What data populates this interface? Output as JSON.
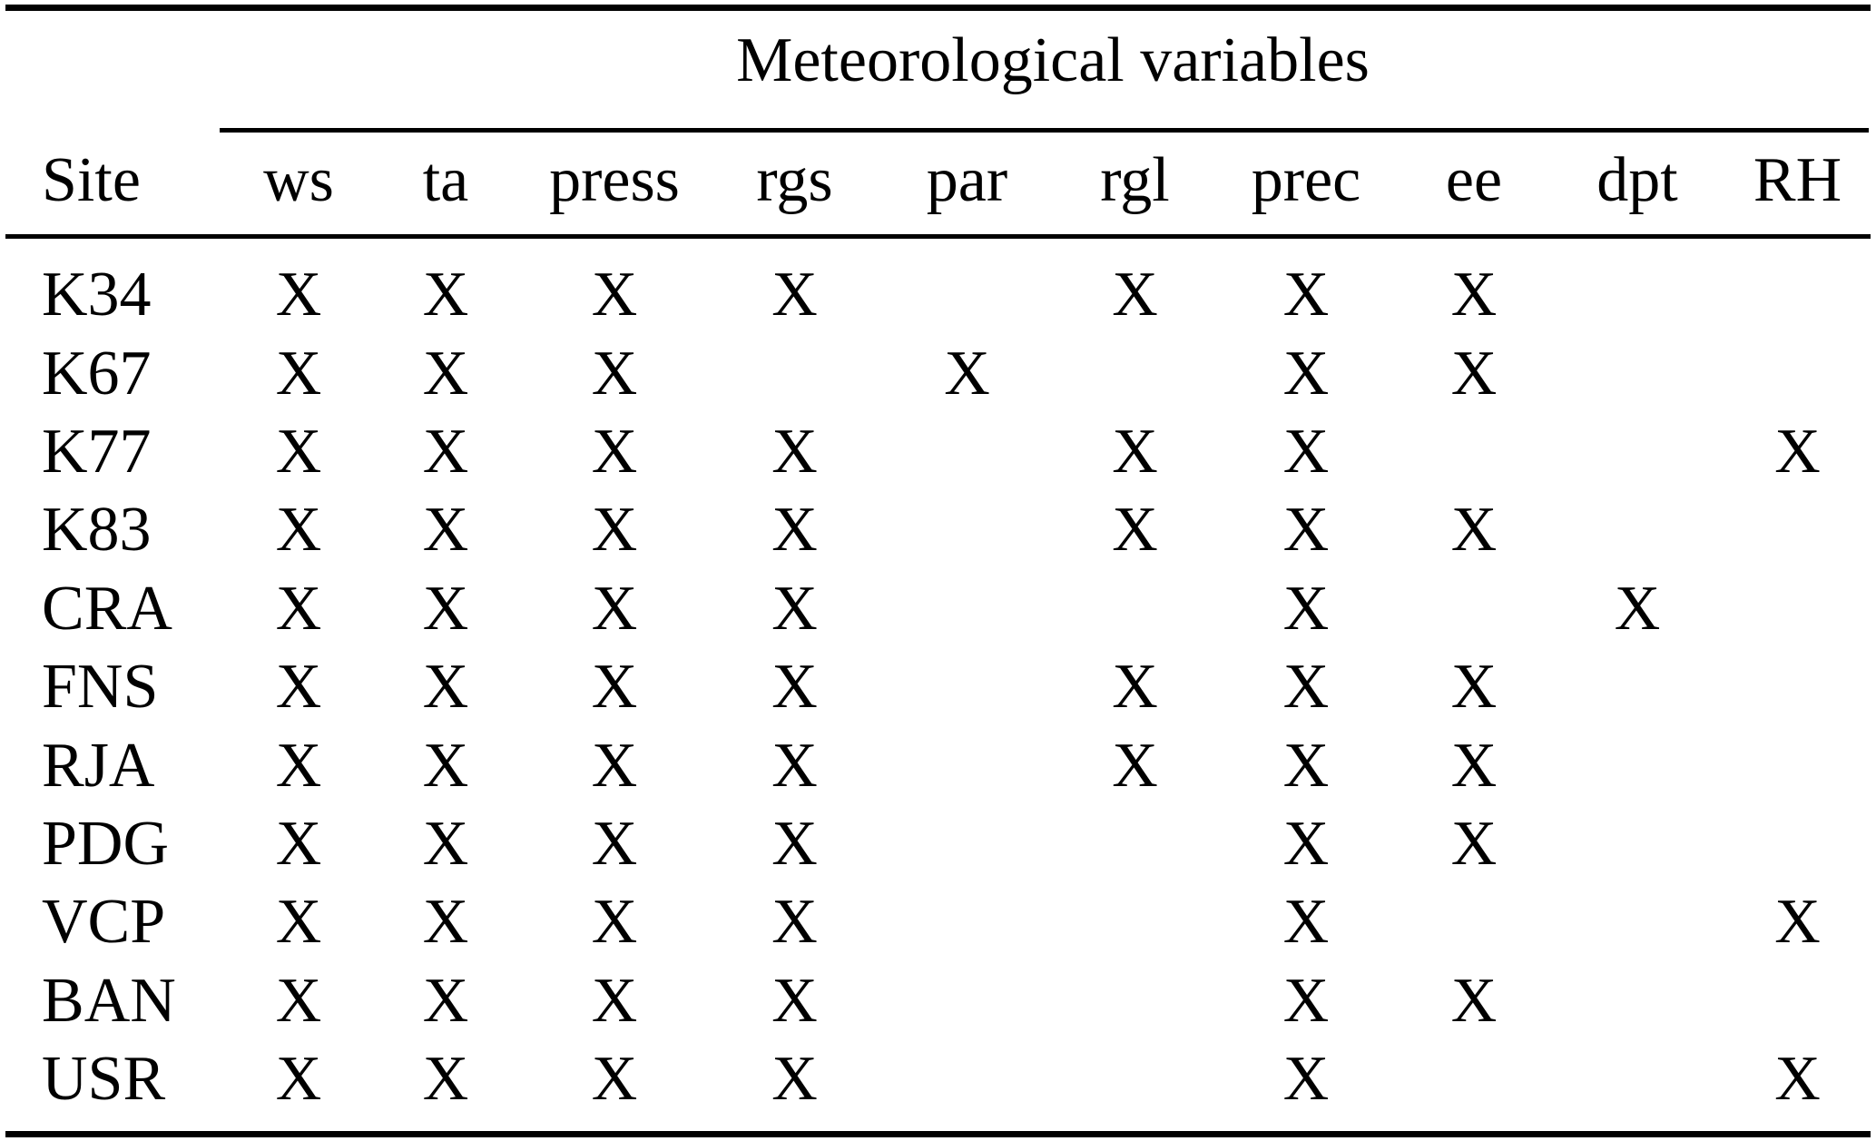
{
  "table": {
    "group_header": "Meteorological variables",
    "site_column_header": "Site",
    "variable_columns": [
      "ws",
      "ta",
      "press",
      "rgs",
      "par",
      "rgl",
      "prec",
      "ee",
      "dpt",
      "RH"
    ],
    "mark": "X",
    "rows": [
      {
        "site": "K34",
        "variables": [
          "ws",
          "ta",
          "press",
          "rgs",
          "rgl",
          "prec",
          "ee"
        ]
      },
      {
        "site": "K67",
        "variables": [
          "ws",
          "ta",
          "press",
          "par",
          "prec",
          "ee"
        ]
      },
      {
        "site": "K77",
        "variables": [
          "ws",
          "ta",
          "press",
          "rgs",
          "rgl",
          "prec",
          "RH"
        ]
      },
      {
        "site": "K83",
        "variables": [
          "ws",
          "ta",
          "press",
          "rgs",
          "rgl",
          "prec",
          "ee"
        ]
      },
      {
        "site": "CRA",
        "variables": [
          "ws",
          "ta",
          "press",
          "rgs",
          "prec",
          "dpt"
        ]
      },
      {
        "site": "FNS",
        "variables": [
          "ws",
          "ta",
          "press",
          "rgs",
          "rgl",
          "prec",
          "ee"
        ]
      },
      {
        "site": "RJA",
        "variables": [
          "ws",
          "ta",
          "press",
          "rgs",
          "rgl",
          "prec",
          "ee"
        ]
      },
      {
        "site": "PDG",
        "variables": [
          "ws",
          "ta",
          "press",
          "rgs",
          "prec",
          "ee"
        ]
      },
      {
        "site": "VCP",
        "variables": [
          "ws",
          "ta",
          "press",
          "rgs",
          "prec",
          "RH"
        ]
      },
      {
        "site": "BAN",
        "variables": [
          "ws",
          "ta",
          "press",
          "rgs",
          "prec",
          "ee"
        ]
      },
      {
        "site": "USR",
        "variables": [
          "ws",
          "ta",
          "press",
          "rgs",
          "prec",
          "RH"
        ]
      }
    ]
  }
}
